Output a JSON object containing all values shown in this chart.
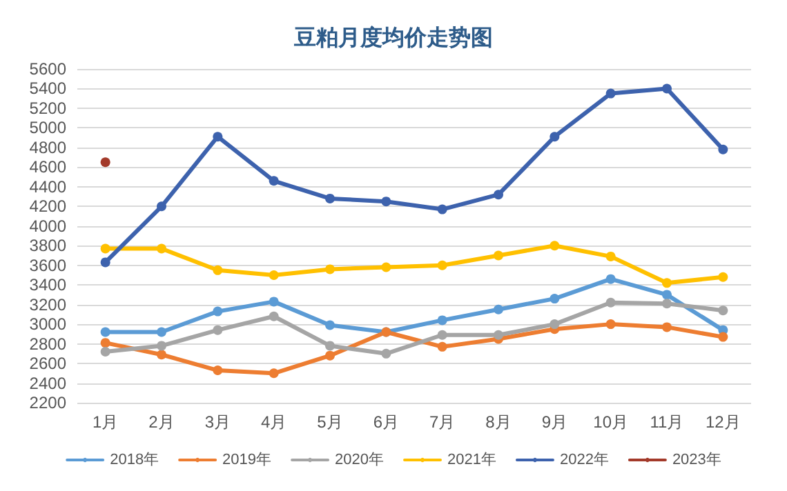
{
  "chart_data": {
    "type": "line",
    "title": "豆粕月度均价走势图",
    "categories": [
      "1月",
      "2月",
      "3月",
      "4月",
      "5月",
      "6月",
      "7月",
      "8月",
      "9月",
      "10月",
      "11月",
      "12月"
    ],
    "series": [
      {
        "name": "2018年",
        "color": "#5b9bd5",
        "values": [
          2920,
          2920,
          3130,
          3230,
          2990,
          2920,
          3040,
          3150,
          3260,
          3460,
          3300,
          2940
        ]
      },
      {
        "name": "2019年",
        "color": "#ed7d31",
        "values": [
          2810,
          2690,
          2530,
          2500,
          2680,
          2920,
          2770,
          2850,
          2950,
          3000,
          2970,
          2870
        ]
      },
      {
        "name": "2020年",
        "color": "#a5a5a5",
        "values": [
          2720,
          2780,
          2940,
          3080,
          2780,
          2700,
          2890,
          2890,
          3000,
          3220,
          3210,
          3140
        ]
      },
      {
        "name": "2021年",
        "color": "#ffc000",
        "values": [
          3770,
          3770,
          3550,
          3500,
          3560,
          3580,
          3600,
          3700,
          3800,
          3690,
          3420,
          3480
        ]
      },
      {
        "name": "2022年",
        "color": "#3d62ad",
        "values": [
          3630,
          4200,
          4910,
          4460,
          4280,
          4250,
          4170,
          4320,
          4910,
          5350,
          5400,
          4780
        ]
      },
      {
        "name": "2023年",
        "color": "#a33a2a",
        "values": [
          4650,
          null,
          null,
          null,
          null,
          null,
          null,
          null,
          null,
          null,
          null,
          null
        ]
      }
    ],
    "ylim": [
      2200,
      5600
    ],
    "yticks": [
      2200,
      2400,
      2600,
      2800,
      3000,
      3200,
      3400,
      3600,
      3800,
      4000,
      4200,
      4400,
      4600,
      4800,
      5000,
      5200,
      5400,
      5600
    ],
    "grid": "y",
    "legend": "bottom",
    "marker": "circle",
    "line_style": "solid"
  }
}
